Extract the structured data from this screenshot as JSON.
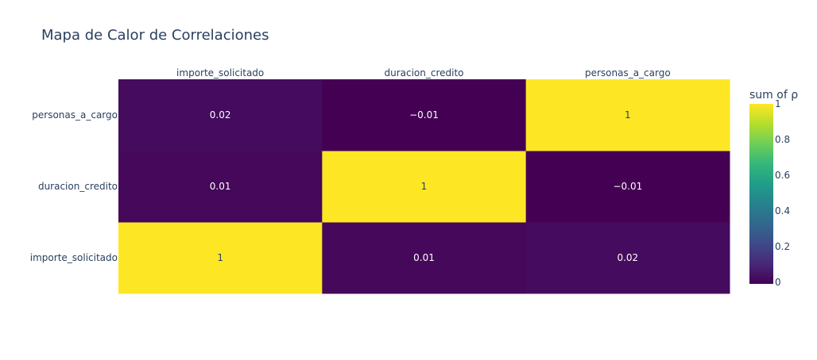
{
  "chart_data": {
    "type": "heatmap",
    "title": "Mapa de Calor de Correlaciones",
    "x_categories": [
      "importe_solicitado",
      "duracion_credito",
      "personas_a_cargo"
    ],
    "y_categories": [
      "importe_solicitado",
      "duracion_credito",
      "personas_a_cargo"
    ],
    "values": [
      [
        1,
        0.01,
        0.02
      ],
      [
        0.01,
        1,
        -0.01
      ],
      [
        0.02,
        -0.01,
        1
      ]
    ],
    "cell_labels": [
      [
        "1",
        "0.01",
        "0.02"
      ],
      [
        "0.01",
        "1",
        "−0.01"
      ],
      [
        "0.02",
        "−0.01",
        "1"
      ]
    ],
    "colorscale": "viridis",
    "zlim": [
      -0.01,
      1
    ],
    "colorbar": {
      "title": "sum of ρ",
      "tick_values": [
        0,
        0.2,
        0.4,
        0.6,
        0.8,
        1
      ],
      "tick_labels": [
        "0",
        "0.2",
        "0.4",
        "0.6",
        "0.8",
        "1"
      ]
    },
    "x_axis_side": "top",
    "grid": false
  }
}
